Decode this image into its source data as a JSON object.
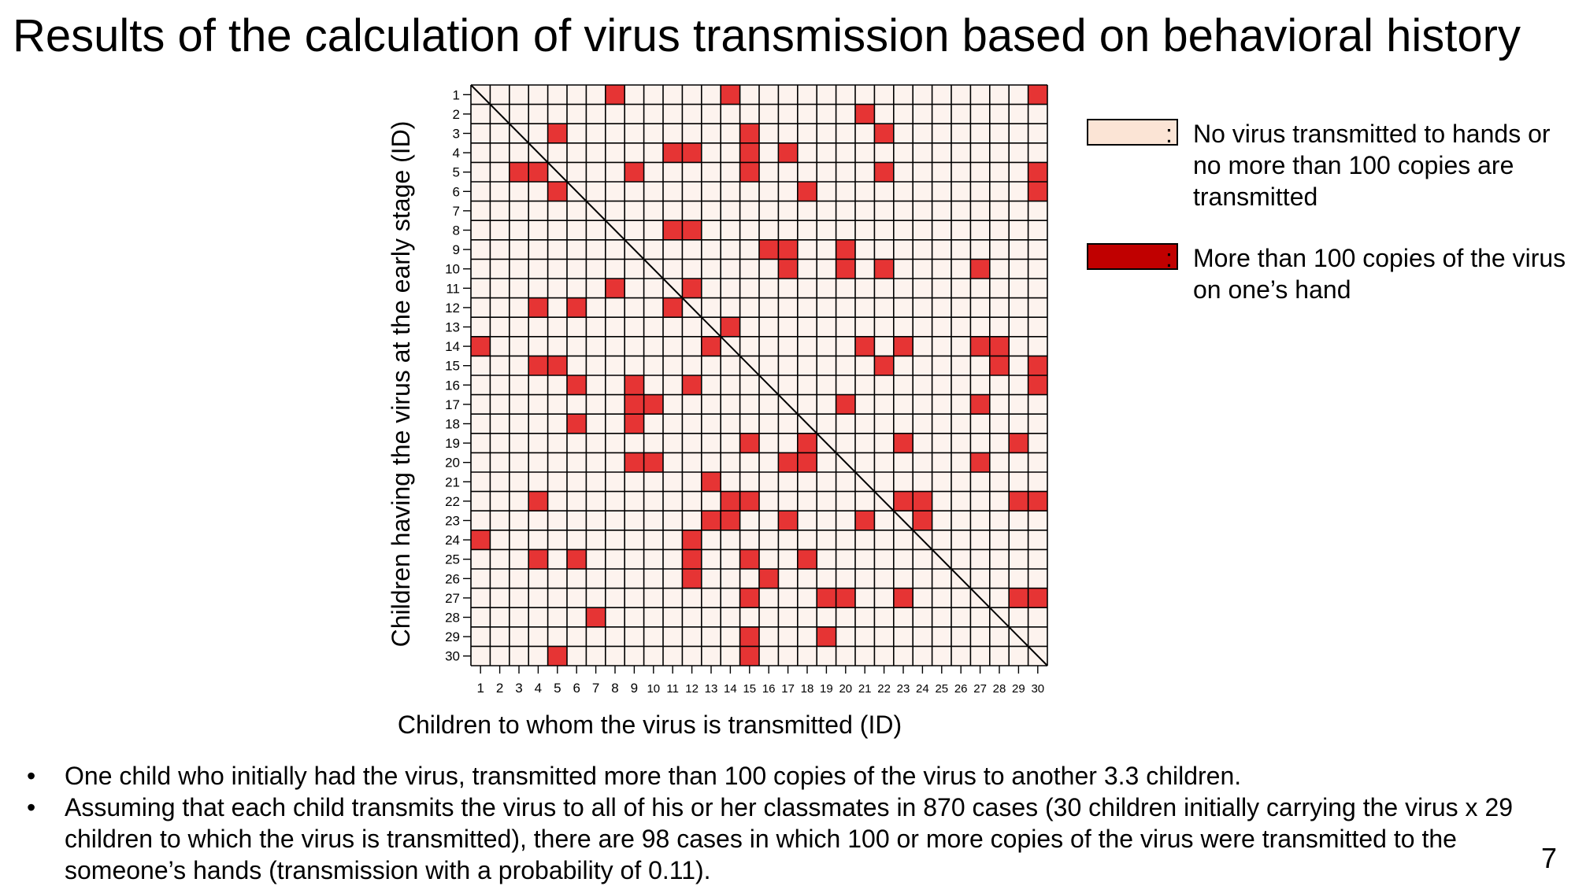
{
  "slide": {
    "title": "Results of the calculation of virus transmission based on behavioral history",
    "page_number": "7"
  },
  "legend": {
    "items": [
      {
        "text": "No virus transmitted to hands or no more than 100 copies are transmitted",
        "color": "#fbe4d5"
      },
      {
        "text": "More than 100 copies of the virus on one’s hand",
        "color": "#c00000"
      }
    ],
    "separator": ":"
  },
  "bullets": [
    "One child who initially had the virus, transmitted more than 100 copies of the virus to another 3.3 children.",
    "Assuming that each child transmits the virus to all of his or her classmates in 870 cases (30 children initially carrying the virus x 29 children to which the virus is transmitted), there are 98 cases in which 100 or more copies of the virus were transmitted to the someone’s hands (transmission with a probability of 0.11)."
  ],
  "chart_data": {
    "type": "heatmap",
    "xlabel": "Children to whom the virus is transmitted (ID)",
    "ylabel": "Children having the virus at the early stage (ID)",
    "x_ticks": [
      1,
      2,
      3,
      4,
      5,
      6,
      7,
      8,
      9,
      10,
      11,
      12,
      13,
      14,
      15,
      16,
      17,
      18,
      19,
      20,
      21,
      22,
      23,
      24,
      25,
      26,
      27,
      28,
      29,
      30
    ],
    "y_ticks": [
      1,
      2,
      3,
      4,
      5,
      6,
      7,
      8,
      9,
      10,
      11,
      12,
      13,
      14,
      15,
      16,
      17,
      18,
      19,
      20,
      21,
      22,
      23,
      24,
      25,
      26,
      27,
      28,
      29,
      30
    ],
    "diagonal_line": true,
    "colors": {
      "low": "#fdf3ee",
      "high": "#e63434",
      "grid": "#000000"
    },
    "high_cells": {
      "1": [
        8,
        14,
        30
      ],
      "2": [
        21
      ],
      "3": [
        5,
        15,
        22
      ],
      "4": [
        11,
        12,
        15,
        17
      ],
      "5": [
        3,
        4,
        9,
        15,
        22,
        30
      ],
      "6": [
        5,
        18,
        30
      ],
      "8": [
        11,
        12
      ],
      "9": [
        16,
        17,
        20
      ],
      "10": [
        17,
        20,
        22,
        27
      ],
      "11": [
        8,
        12
      ],
      "12": [
        4,
        6,
        11
      ],
      "13": [
        14
      ],
      "14": [
        1,
        13,
        21,
        23,
        27,
        28
      ],
      "15": [
        4,
        5,
        22,
        28,
        30
      ],
      "16": [
        6,
        9,
        12,
        30
      ],
      "17": [
        9,
        10,
        20,
        27
      ],
      "18": [
        6,
        9
      ],
      "19": [
        15,
        18,
        23,
        29
      ],
      "20": [
        9,
        10,
        17,
        18,
        27
      ],
      "21": [
        13
      ],
      "22": [
        4,
        14,
        15,
        23,
        24,
        29,
        30
      ],
      "23": [
        13,
        14,
        17,
        21,
        24
      ],
      "24": [
        1,
        12
      ],
      "25": [
        4,
        6,
        12,
        15,
        18
      ],
      "26": [
        12,
        16
      ],
      "27": [
        15,
        19,
        20,
        23,
        29,
        30
      ],
      "28": [
        7
      ],
      "29": [
        15,
        19
      ],
      "30": [
        5,
        15
      ]
    }
  }
}
